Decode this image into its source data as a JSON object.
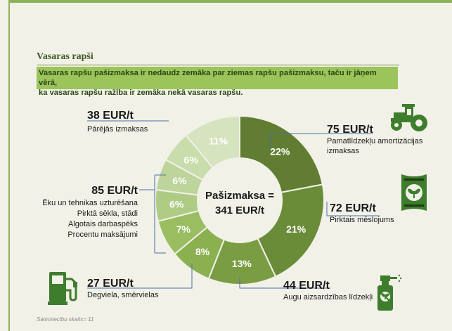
{
  "section_title": "Vasaras rapši",
  "subtitle_line1": "Vasaras rapšu pašizmaksa ir nedaudz zemāka par ziemas rapšu pašizmaksu, taču ir jāņem vērā,",
  "subtitle_line2": "ka vasaras rapšu ražība ir zemāka nekā vasaras rapšu.",
  "footer": "Saimniecību skaits= 11",
  "colors": {
    "accent": "#8db35a",
    "dark_green": "#5b7f2e"
  },
  "chart_data": {
    "type": "pie",
    "donut": true,
    "center_label_line1": "Pašizmaksa =",
    "center_label_line2": "341 EUR/t",
    "slices": [
      {
        "percent": 22,
        "label": "22%",
        "color": "#607d31"
      },
      {
        "percent": 21,
        "label": "21%",
        "color": "#6a8b38"
      },
      {
        "percent": 13,
        "label": "13%",
        "color": "#7a9d44"
      },
      {
        "percent": 8,
        "label": "8%",
        "color": "#8bb050"
      },
      {
        "percent": 7,
        "label": "7%",
        "color": "#99bd60"
      },
      {
        "percent": 6,
        "label": "6%",
        "color": "#aecb84"
      },
      {
        "percent": 6,
        "label": "6%",
        "color": "#bdd49a"
      },
      {
        "percent": 6,
        "label": "6%",
        "color": "#c9dcab"
      },
      {
        "percent": 11,
        "label": "11%",
        "color": "#d6e3bf"
      }
    ],
    "annotations": [
      {
        "value": "75 EUR/t",
        "text": [
          "Pamatlīdzekļu amortizācijas",
          "izmaksas"
        ]
      },
      {
        "value": "72 EUR/t",
        "text": [
          "Pirktais mēslojums"
        ]
      },
      {
        "value": "44 EUR/t",
        "text": [
          "Augu aizsardzības līdzekļi"
        ]
      },
      {
        "value": "27 EUR/t",
        "text": [
          "Degviela, smērvielas"
        ]
      },
      {
        "value": "85 EUR/t",
        "text": [
          "Ēku un tehnikas uzturēšana",
          "Pirktā sēkla, stādi",
          "Algotais darbaspēks",
          "Procentu maksājumi"
        ]
      },
      {
        "value": "38 EUR/t",
        "text": [
          "Pārējās izmaksas"
        ]
      }
    ]
  },
  "icons": [
    "tractor-icon",
    "fertilizer-bag-icon",
    "sprayer-icon",
    "fuel-pump-icon"
  ]
}
